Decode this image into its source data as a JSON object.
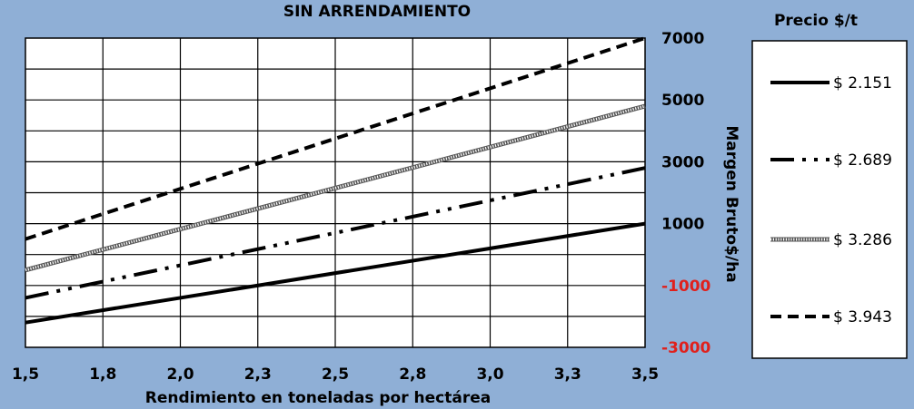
{
  "chart_data": {
    "type": "line",
    "title": "SIN ARRENDAMIENTO",
    "xlabel": "Rendimiento en toneladas por hectárea",
    "ylabel": "Margen Bruto$/ha",
    "x_ticks": [
      "1,5",
      "1,8",
      "2,0",
      "2,3",
      "2,5",
      "2,8",
      "3,0",
      "3,3",
      "3,5"
    ],
    "y_ticks": [
      "7000",
      "5000",
      "3000",
      "1000",
      "-1000",
      "-3000"
    ],
    "y_tick_values": [
      7000,
      5000,
      3000,
      1000,
      -1000,
      -3000
    ],
    "xlim": [
      1.5,
      3.5
    ],
    "ylim": [
      -3000,
      7000
    ],
    "grid": true,
    "legend_title": "Precio $/t",
    "legend_position": "right",
    "series": [
      {
        "name": "$ 2.151",
        "style": "solid",
        "x": [
          1.5,
          3.5
        ],
        "y": [
          -2200,
          1000
        ]
      },
      {
        "name": "$ 2.689",
        "style": "dashdotdot",
        "x": [
          1.5,
          3.5
        ],
        "y": [
          -1400,
          2800
        ]
      },
      {
        "name": "$ 3.286",
        "style": "hatched",
        "x": [
          1.5,
          3.5
        ],
        "y": [
          -500,
          4800
        ]
      },
      {
        "name": "$ 3.943",
        "style": "dashed",
        "x": [
          1.5,
          3.5
        ],
        "y": [
          500,
          7000
        ]
      }
    ],
    "colors": {
      "background": "#8fafd6",
      "plot_area": "#ffffff",
      "line": "#000000",
      "negative_tick": "#e0201c"
    }
  }
}
